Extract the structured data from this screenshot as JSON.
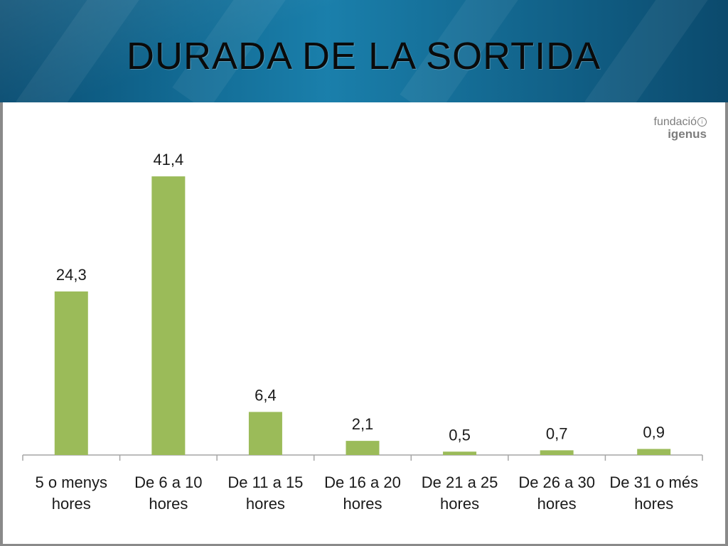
{
  "slide": {
    "title": "DURADA DE LA SORTIDA",
    "logo_line1": "fundació",
    "logo_line2": "igenus",
    "logo_mark": "i"
  },
  "colors": {
    "bar": "#9bbb59",
    "header": "#136f99"
  },
  "chart_data": {
    "type": "bar",
    "title": "",
    "xlabel": "",
    "ylabel": "",
    "categories": [
      [
        "5 o menys",
        "hores"
      ],
      [
        "De 6 a 10",
        "hores"
      ],
      [
        "De 11 a 15",
        "hores"
      ],
      [
        "De 16 a 20",
        "hores"
      ],
      [
        "De 21 a 25",
        "hores"
      ],
      [
        "De 26 a 30",
        "hores"
      ],
      [
        "De 31 o més",
        "hores"
      ]
    ],
    "values": [
      24.3,
      41.4,
      6.4,
      2.1,
      0.5,
      0.7,
      0.9
    ],
    "value_labels": [
      "24,3",
      "41,4",
      "6,4",
      "2,1",
      "0,5",
      "0,7",
      "0,9"
    ],
    "ylim": [
      0,
      45
    ],
    "grid": false,
    "legend": "none"
  }
}
